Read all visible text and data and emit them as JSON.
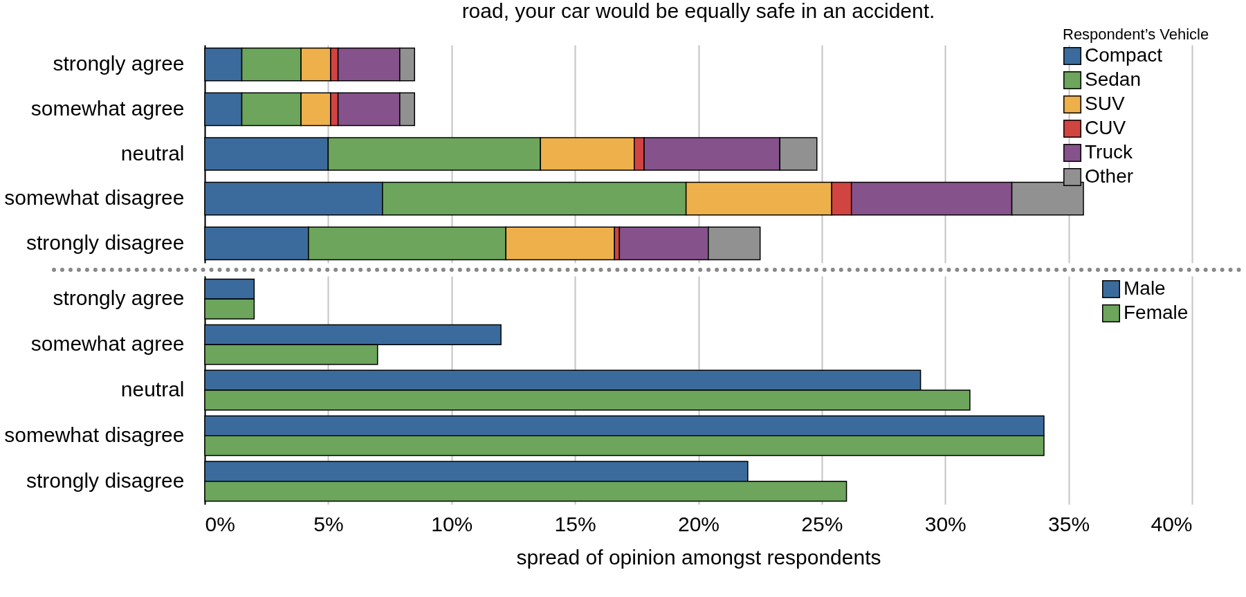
{
  "chart_data": [
    {
      "type": "bar",
      "orientation": "horizontal",
      "stacked": true,
      "title": "road, your car would be equally safe in an accident.",
      "legend_title": "Respondent’s Vehicle",
      "categories": [
        "strongly agree",
        "somewhat agree",
        "neutral",
        "somewhat disagree",
        "strongly disagree"
      ],
      "series": [
        {
          "name": "Compact",
          "color": "#3b6b9c",
          "values": [
            1.5,
            1.5,
            5.0,
            7.2,
            4.2
          ]
        },
        {
          "name": "Sedan",
          "color": "#6ca55b",
          "values": [
            2.4,
            2.4,
            8.6,
            12.3,
            8.0
          ]
        },
        {
          "name": "SUV",
          "color": "#edb04b",
          "values": [
            1.2,
            1.2,
            3.8,
            5.9,
            4.4
          ]
        },
        {
          "name": "CUV",
          "color": "#d04441",
          "values": [
            0.3,
            0.3,
            0.4,
            0.8,
            0.2
          ]
        },
        {
          "name": "Truck",
          "color": "#85528b",
          "values": [
            2.5,
            2.5,
            5.5,
            6.5,
            3.6
          ]
        },
        {
          "name": "Other",
          "color": "#919191",
          "values": [
            0.6,
            0.6,
            1.5,
            2.9,
            2.1
          ]
        }
      ],
      "xlim": [
        0,
        40
      ],
      "xticks": [
        0,
        5,
        10,
        15,
        20,
        25,
        30,
        35,
        40
      ],
      "grid": "x",
      "legend": "top right",
      "tick_labels": "y"
    },
    {
      "type": "bar",
      "orientation": "horizontal",
      "xlabel": "spread of opinion amongst respondents",
      "categories": [
        "strongly agree",
        "somewhat agree",
        "neutral",
        "somewhat disagree",
        "strongly disagree"
      ],
      "series": [
        {
          "name": "Male",
          "color": "#3b6b9c",
          "values": [
            2,
            12,
            29,
            34,
            22
          ]
        },
        {
          "name": "Female",
          "color": "#6ca55b",
          "values": [
            2,
            7,
            31,
            34,
            26
          ]
        }
      ],
      "xlim": [
        0,
        40
      ],
      "xticks": [
        {
          "value": 0,
          "label": "0%"
        },
        {
          "value": 5,
          "label": "5%"
        },
        {
          "value": 10,
          "label": "10%"
        },
        {
          "value": 15,
          "label": "15%"
        },
        {
          "value": 20,
          "label": "20%"
        },
        {
          "value": 25,
          "label": "25%"
        },
        {
          "value": 30,
          "label": "30%"
        },
        {
          "value": 35,
          "label": "35%"
        },
        {
          "value": 40,
          "label": "40%"
        }
      ],
      "grid": "x",
      "legend": "top right"
    }
  ]
}
